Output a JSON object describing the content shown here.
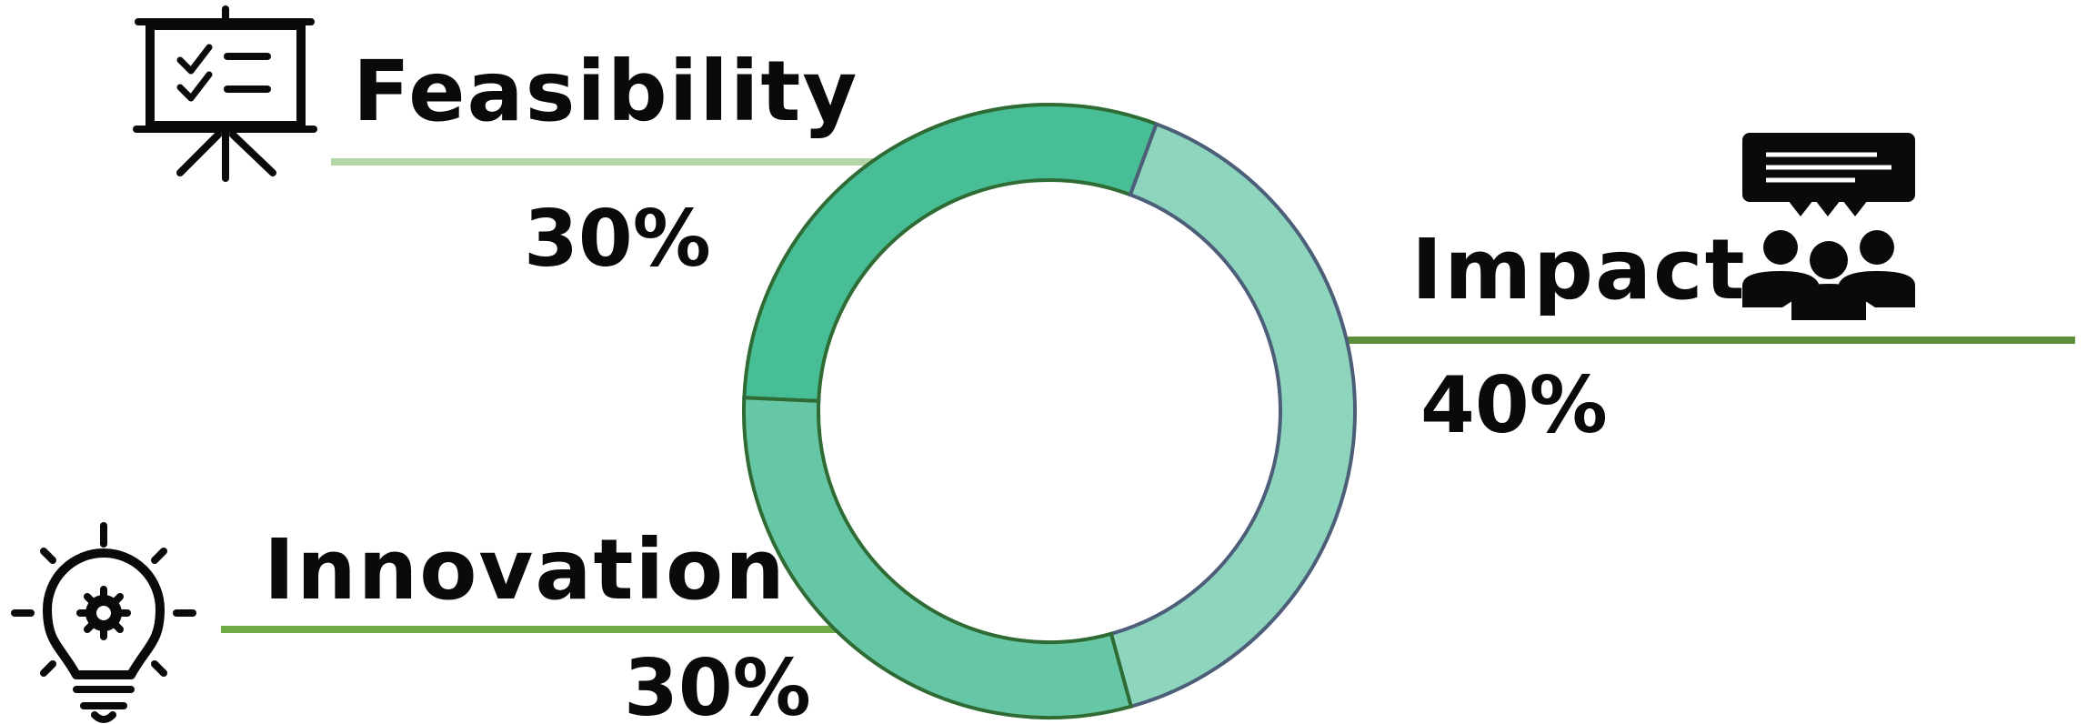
{
  "chart_data": {
    "type": "pie",
    "variant": "donut",
    "categories": [
      "Feasibility",
      "Impact",
      "Innovation"
    ],
    "values": [
      30,
      40,
      30
    ],
    "value_labels": [
      "30%",
      "40%",
      "30%"
    ],
    "colors": [
      "#47be96",
      "#8dd6bd",
      "#66c7a6"
    ],
    "icons": [
      "presentation-board-checklist-icon",
      "team-speech-bubble-icon",
      "lightbulb-gear-icon"
    ],
    "leader_colors": [
      "#b6d5a6",
      "#5c8f38",
      "#6fac46"
    ],
    "title": "",
    "legend": "none"
  }
}
